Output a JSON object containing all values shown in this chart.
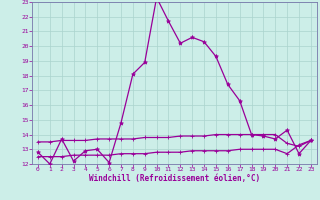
{
  "xlabel": "Windchill (Refroidissement éolien,°C)",
  "background_color": "#cceee8",
  "grid_color": "#aad4ce",
  "line_color": "#990099",
  "spine_color": "#7777aa",
  "xlim": [
    -0.5,
    23.5
  ],
  "ylim": [
    12,
    23
  ],
  "xticks": [
    0,
    1,
    2,
    3,
    4,
    5,
    6,
    7,
    8,
    9,
    10,
    11,
    12,
    13,
    14,
    15,
    16,
    17,
    18,
    19,
    20,
    21,
    22,
    23
  ],
  "yticks": [
    12,
    13,
    14,
    15,
    16,
    17,
    18,
    19,
    20,
    21,
    22,
    23
  ],
  "series1_x": [
    0,
    1,
    2,
    3,
    4,
    5,
    6,
    7,
    8,
    9,
    10,
    11,
    12,
    13,
    14,
    15,
    16,
    17,
    18,
    19,
    20,
    21,
    22,
    23
  ],
  "series1_y": [
    12.8,
    12.0,
    13.7,
    12.2,
    12.9,
    13.0,
    12.1,
    14.8,
    18.1,
    18.9,
    23.3,
    21.7,
    20.2,
    20.6,
    20.3,
    19.3,
    17.4,
    16.3,
    14.0,
    13.9,
    13.7,
    14.3,
    12.7,
    13.6
  ],
  "series2_x": [
    0,
    1,
    2,
    3,
    4,
    5,
    6,
    7,
    8,
    9,
    10,
    11,
    12,
    13,
    14,
    15,
    16,
    17,
    18,
    19,
    20,
    21,
    22,
    23
  ],
  "series2_y": [
    13.5,
    13.5,
    13.6,
    13.6,
    13.6,
    13.7,
    13.7,
    13.7,
    13.7,
    13.8,
    13.8,
    13.8,
    13.9,
    13.9,
    13.9,
    14.0,
    14.0,
    14.0,
    14.0,
    14.0,
    14.0,
    13.4,
    13.2,
    13.6
  ],
  "series3_x": [
    0,
    1,
    2,
    3,
    4,
    5,
    6,
    7,
    8,
    9,
    10,
    11,
    12,
    13,
    14,
    15,
    16,
    17,
    18,
    19,
    20,
    21,
    22,
    23
  ],
  "series3_y": [
    12.5,
    12.5,
    12.5,
    12.6,
    12.6,
    12.6,
    12.6,
    12.7,
    12.7,
    12.7,
    12.8,
    12.8,
    12.8,
    12.9,
    12.9,
    12.9,
    12.9,
    13.0,
    13.0,
    13.0,
    13.0,
    12.7,
    13.3,
    13.6
  ]
}
